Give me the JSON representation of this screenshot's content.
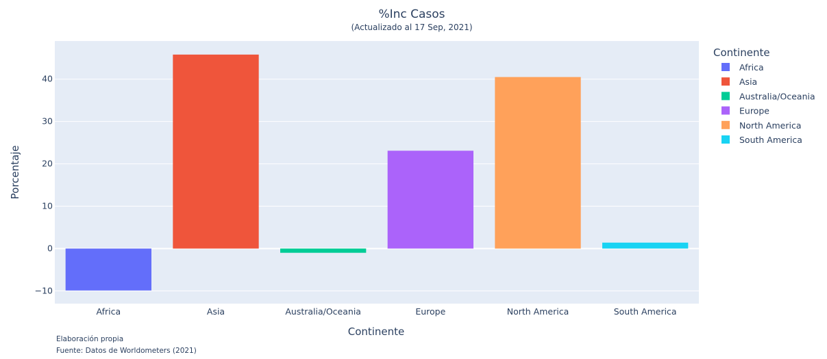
{
  "chart_data": {
    "type": "bar",
    "title": "%Inc Casos",
    "subtitle": "(Actualizado al 17 Sep, 2021)",
    "xlabel": "Continente",
    "ylabel": "Porcentaje",
    "categories": [
      "Africa",
      "Asia",
      "Australia/Oceania",
      "Europe",
      "North America",
      "South America"
    ],
    "values": [
      -9.9,
      45.8,
      -1.0,
      23.1,
      40.5,
      1.4
    ],
    "colors": [
      "#636efa",
      "#EF553B",
      "#00cc96",
      "#ab63fa",
      "#FFA15A",
      "#19d3f3"
    ],
    "ylim": [
      -13,
      49
    ],
    "yticks": [
      -10,
      0,
      10,
      20,
      30,
      40
    ],
    "ytick_labels": [
      "−10",
      "0",
      "10",
      "20",
      "30",
      "40"
    ],
    "grid": true,
    "legend": {
      "title": "Continente",
      "placement": "right",
      "entries": [
        "Africa",
        "Asia",
        "Australia/Oceania",
        "Europe",
        "North America",
        "South America"
      ]
    }
  },
  "notes": {
    "line1": "Elaboración propia",
    "line2": "Fuente: Datos de Worldometers (2021)"
  }
}
